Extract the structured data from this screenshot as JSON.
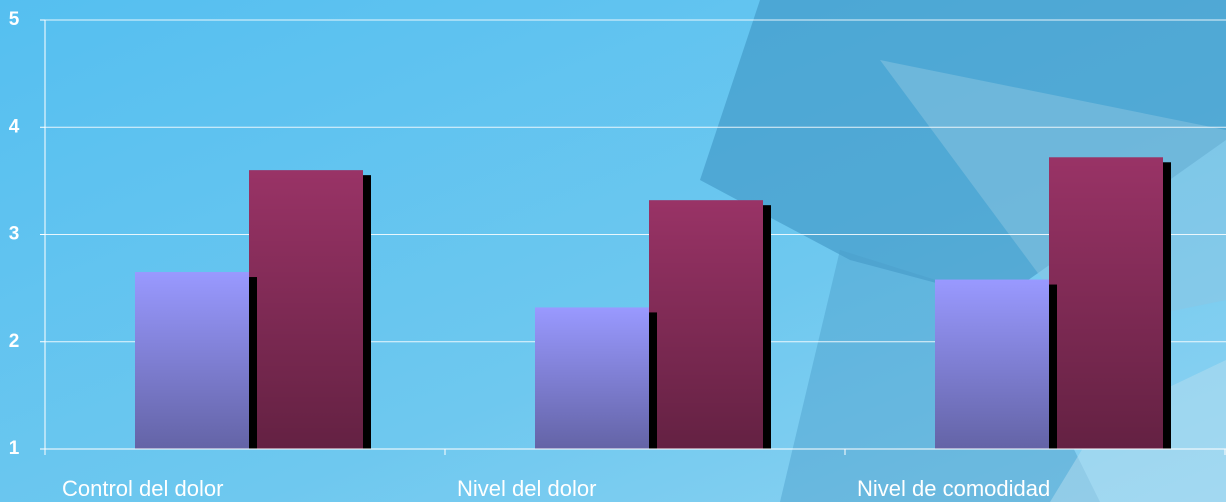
{
  "chart_data": {
    "type": "bar",
    "categories": [
      "Control del dolor",
      "Nivel del dolor",
      "Nivel de comodidad"
    ],
    "series": [
      {
        "color": "#9999ff",
        "values": [
          2.65,
          2.32,
          2.58
        ]
      },
      {
        "color": "#993366",
        "values": [
          3.6,
          3.32,
          3.72
        ]
      }
    ],
    "ylim": [
      1,
      5
    ],
    "yticks": [
      1,
      2,
      3,
      4,
      5
    ],
    "grid": true
  }
}
